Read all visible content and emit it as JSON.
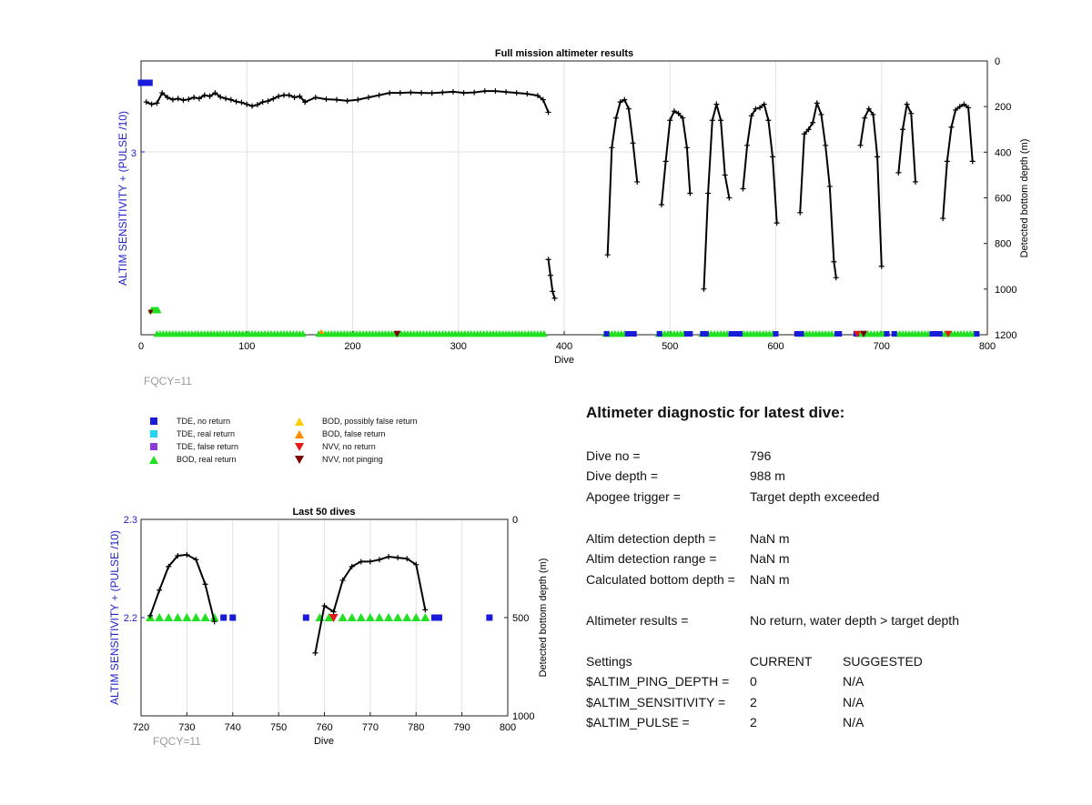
{
  "top_chart": {
    "title": "Full mission altimeter results",
    "xlabel": "Dive",
    "ylabel_left": "ALTIM SENSITIVITY + (PULSE /10)",
    "ylabel_right": "Detected bottom depth (m)",
    "left_tick": "3",
    "x_ticks": [
      "0",
      "100",
      "200",
      "300",
      "400",
      "500",
      "600",
      "700",
      "800"
    ],
    "y_ticks_right": [
      "0",
      "200",
      "400",
      "600",
      "800",
      "1000",
      "1200"
    ],
    "fqcy": "FQCY=11"
  },
  "bottom_chart": {
    "title": "Last 50 dives",
    "xlabel": "Dive",
    "ylabel_left": "ALTIM SENSITIVITY + (PULSE /10)",
    "ylabel_right": "Detected bottom depth (m)",
    "left_ticks": [
      "2.3",
      "2.2"
    ],
    "x_ticks": [
      "720",
      "730",
      "740",
      "750",
      "760",
      "770",
      "780",
      "790",
      "800"
    ],
    "y_ticks_right": [
      "0",
      "500",
      "1000"
    ],
    "fqcy": "FQCY=11"
  },
  "legend": [
    {
      "label": "TDE, no return",
      "shape": "square",
      "color": "#1a1adb"
    },
    {
      "label": "TDE, real return",
      "shape": "square",
      "color": "#22d8f0"
    },
    {
      "label": "TDE, false return",
      "shape": "square",
      "color": "#8a3ad8"
    },
    {
      "label": "BOD, real return",
      "shape": "triangle-up",
      "color": "#22e022"
    },
    {
      "label": "BOD, possibly false return",
      "shape": "triangle-up",
      "color": "#ffcc00"
    },
    {
      "label": "BOD, false return",
      "shape": "triangle-up",
      "color": "#ff8c00"
    },
    {
      "label": "NVV, no return",
      "shape": "triangle-down",
      "color": "#e81818"
    },
    {
      "label": "NVV, not pinging",
      "shape": "triangle-down",
      "color": "#7a0000"
    }
  ],
  "diagnostic": {
    "title": "Altimeter diagnostic for latest dive:",
    "dive_no_label": "Dive no =",
    "dive_no": "796",
    "dive_depth_label": "Dive depth =",
    "dive_depth": "988 m",
    "apogee_label": "Apogee trigger =",
    "apogee": "Target depth exceeded",
    "det_depth_label": "Altim detection depth =",
    "det_depth": "NaN m",
    "det_range_label": "Altim detection range =",
    "det_range": "NaN m",
    "calc_depth_label": "Calculated bottom depth =",
    "calc_depth": "NaN m",
    "results_label": "Altimeter results =",
    "results": "No return, water depth > target depth",
    "settings_label": "Settings",
    "current_label": "CURRENT",
    "suggested_label": "SUGGESTED",
    "ping_label": "$ALTIM_PING_DEPTH =",
    "ping_current": "0",
    "ping_suggested": "N/A",
    "sens_label": "$ALTIM_SENSITIVITY =",
    "sens_current": "2",
    "sens_suggested": "N/A",
    "pulse_label": "$ALTIM_PULSE =",
    "pulse_current": "2",
    "pulse_suggested": "N/A"
  },
  "chart_data": [
    {
      "type": "line",
      "title": "Full mission altimeter results",
      "xlabel": "Dive",
      "ylabel": "Detected bottom depth (m)",
      "xlim": [
        0,
        800
      ],
      "ylim_right": [
        0,
        1200
      ],
      "y_reversed": true,
      "grid": true,
      "segments": [
        {
          "x": [
            5,
            10,
            15,
            20,
            25,
            30,
            35,
            40,
            45,
            50,
            55,
            60,
            65,
            70,
            75,
            80,
            85,
            90,
            95,
            100,
            105,
            110,
            115,
            120,
            125,
            130,
            135,
            140,
            145,
            150,
            155
          ],
          "y": [
            180,
            190,
            185,
            140,
            160,
            170,
            165,
            172,
            168,
            160,
            165,
            150,
            155,
            140,
            158,
            165,
            170,
            178,
            182,
            190,
            198,
            192,
            180,
            176,
            166,
            155,
            150,
            150,
            160,
            155,
            180
          ]
        },
        {
          "x": [
            155,
            165,
            175,
            185,
            195,
            205,
            215,
            225,
            235,
            245,
            255,
            265,
            275,
            285,
            295,
            305,
            315,
            325,
            335,
            345,
            355,
            365,
            375,
            380,
            385
          ],
          "y": [
            180,
            160,
            168,
            170,
            175,
            170,
            160,
            150,
            140,
            140,
            138,
            140,
            141,
            138,
            135,
            140,
            138,
            132,
            132,
            136,
            140,
            144,
            152,
            170,
            225
          ]
        },
        {
          "x": [
            385,
            387,
            389,
            391
          ],
          "y": [
            870,
            940,
            1010,
            1040
          ]
        },
        {
          "x": [
            441,
            445,
            449,
            453,
            457,
            461,
            465,
            469
          ],
          "y": [
            850,
            380,
            250,
            180,
            170,
            210,
            360,
            530
          ]
        },
        {
          "x": [
            492,
            496,
            500,
            504,
            508,
            512,
            516,
            519
          ],
          "y": [
            630,
            440,
            260,
            220,
            230,
            250,
            380,
            580
          ]
        },
        {
          "x": [
            532,
            536,
            540,
            544,
            548,
            552,
            556
          ],
          "y": [
            1000,
            580,
            260,
            190,
            260,
            500,
            600
          ]
        },
        {
          "x": [
            569,
            573,
            577,
            581,
            585,
            589,
            593,
            597,
            601
          ],
          "y": [
            560,
            370,
            240,
            210,
            205,
            190,
            260,
            420,
            710
          ]
        },
        {
          "x": [
            623,
            627,
            631,
            635,
            639,
            643,
            647,
            651,
            655,
            657
          ],
          "y": [
            665,
            320,
            300,
            270,
            185,
            235,
            370,
            550,
            880,
            950
          ]
        },
        {
          "x": [
            680,
            684,
            688,
            692,
            696,
            700
          ],
          "y": [
            370,
            250,
            210,
            235,
            420,
            900
          ]
        },
        {
          "x": [
            716,
            720,
            724,
            728,
            732
          ],
          "y": [
            490,
            300,
            190,
            230,
            530
          ]
        },
        {
          "x": [
            758,
            762,
            766,
            770,
            774,
            778,
            782,
            786
          ],
          "y": [
            690,
            440,
            290,
            215,
            200,
            190,
            205,
            440
          ]
        }
      ],
      "left_tick_value": 3
    },
    {
      "type": "line",
      "title": "Last 50 dives",
      "xlabel": "Dive",
      "ylabel": "Detected bottom depth (m)",
      "xlim": [
        720,
        800
      ],
      "ylim_left": [
        2.1,
        2.3
      ],
      "ylim_right": [
        0,
        1000
      ],
      "y_reversed": true,
      "grid": true,
      "segments": [
        {
          "x": [
            722,
            724,
            726,
            728,
            730,
            732,
            734,
            736
          ],
          "y": [
            490,
            360,
            240,
            185,
            180,
            205,
            330,
            520
          ]
        },
        {
          "x": [
            758,
            760,
            762,
            764,
            766,
            768,
            770,
            772,
            774,
            776,
            778,
            780,
            782
          ],
          "y": [
            680,
            440,
            470,
            310,
            240,
            215,
            215,
            205,
            190,
            195,
            200,
            230,
            460
          ]
        }
      ],
      "bod_real_return_dives": [
        722,
        724,
        726,
        728,
        730,
        732,
        734,
        736,
        759,
        761,
        764,
        766,
        768,
        770,
        772,
        774,
        776,
        778,
        780,
        782
      ],
      "tde_no_return_dives": [
        738,
        740,
        756,
        784,
        785,
        796
      ],
      "nvv_no_return_dives": [
        762
      ]
    }
  ]
}
